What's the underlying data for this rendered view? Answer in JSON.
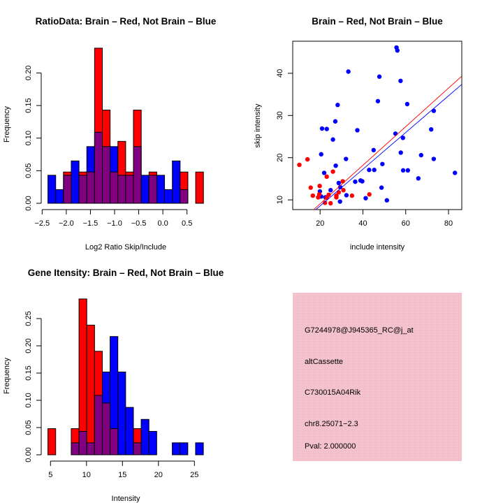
{
  "colors": {
    "red": "#ff0000",
    "blue": "#0000ff",
    "overlap": "#800080",
    "panel": "#f4c2cc",
    "pval": "#8b0000"
  },
  "chart_data": [
    {
      "type": "bar",
      "title": "RatioData: Brain – Red, Not Brain – Blue",
      "xlabel": "Log2 Ratio Skip/Include",
      "ylabel": "Frequency",
      "bin_start": -2.38,
      "bin_width": 0.161,
      "xticks": [
        -2.5,
        -2.0,
        -1.5,
        -1.0,
        -0.5,
        0.0,
        0.5
      ],
      "xtick_labels": [
        "−2.5",
        "−2.0",
        "−1.5",
        "−1.0",
        "−0.5",
        "0.0",
        "0.5"
      ],
      "yticks": [
        0,
        0.05,
        0.1,
        0.15,
        0.2
      ],
      "ytick_labels": [
        "0.00",
        "0.05",
        "0.10",
        "0.15",
        "0.20"
      ],
      "series": [
        {
          "name": "Brain",
          "color": "red",
          "values": [
            0,
            0,
            0.048,
            0,
            0.048,
            0.048,
            0.238,
            0.143,
            0.048,
            0.095,
            0.048,
            0.143,
            0,
            0.048,
            0,
            0,
            0,
            0.048,
            0,
            0.048
          ]
        },
        {
          "name": "Not Brain",
          "color": "blue",
          "values": [
            0.043,
            0.021,
            0.043,
            0.065,
            0.043,
            0.087,
            0.109,
            0.087,
            0.087,
            0.043,
            0.043,
            0.087,
            0.043,
            0.043,
            0.043,
            0.021,
            0.065,
            0.021,
            0,
            0
          ]
        }
      ]
    },
    {
      "type": "scatter",
      "title": "Brain – Red, Not Brain – Blue",
      "xlabel": "include intensity",
      "ylabel": "skip intensity",
      "xlim": [
        7.2,
        86.2
      ],
      "ylim": [
        7.7,
        47.6
      ],
      "xticks": [
        20,
        40,
        60,
        80
      ],
      "xtick_labels": [
        "20",
        "40",
        "60",
        "80"
      ],
      "yticks": [
        10,
        20,
        30,
        40
      ],
      "ytick_labels": [
        "10",
        "20",
        "30",
        "40"
      ],
      "series": [
        {
          "name": "Not Brain",
          "color": "blue",
          "points": [
            [
              55.7,
              46.1
            ],
            [
              56.1,
              45.4
            ],
            [
              33.2,
              40.4
            ],
            [
              47.7,
              39.2
            ],
            [
              57.6,
              38.2
            ],
            [
              47.0,
              33.4
            ],
            [
              60.7,
              32.7
            ],
            [
              28.2,
              32.5
            ],
            [
              73.1,
              31.1
            ],
            [
              27.1,
              28.6
            ],
            [
              20.9,
              26.9
            ],
            [
              23.1,
              26.8
            ],
            [
              71.9,
              26.7
            ],
            [
              37.4,
              26.5
            ],
            [
              55.2,
              25.7
            ],
            [
              26.0,
              24.3
            ],
            [
              58.7,
              24.7
            ],
            [
              45.0,
              21.8
            ],
            [
              57.7,
              21.2
            ],
            [
              67.2,
              20.6
            ],
            [
              20.5,
              20.8
            ],
            [
              32.1,
              19.7
            ],
            [
              73.1,
              19.7
            ],
            [
              49.1,
              18.5
            ],
            [
              27.3,
              18.1
            ],
            [
              42.9,
              17.1
            ],
            [
              45.3,
              17.1
            ],
            [
              58.8,
              17.0
            ],
            [
              61.0,
              17.0
            ],
            [
              83.0,
              16.4
            ],
            [
              21.9,
              16.4
            ],
            [
              65.9,
              15.1
            ],
            [
              36.4,
              14.3
            ],
            [
              38.9,
              14.6
            ],
            [
              39.7,
              14.4
            ],
            [
              28.7,
              14.0
            ],
            [
              48.7,
              12.9
            ],
            [
              29.4,
              13.0
            ],
            [
              24.9,
              12.3
            ],
            [
              19.9,
              12.0
            ],
            [
              20.5,
              10.8
            ],
            [
              22.5,
              10.6
            ],
            [
              32.3,
              11.1
            ],
            [
              41.3,
              10.4
            ],
            [
              29.3,
              9.6
            ],
            [
              51.2,
              9.9
            ]
          ],
          "fit": {
            "slope": 0.435,
            "intercept": -0.13
          }
        },
        {
          "name": "Brain",
          "color": "red",
          "points": [
            [
              10.3,
              18.3
            ],
            [
              14.1,
              19.6
            ],
            [
              26.0,
              16.7
            ],
            [
              23.1,
              15.5
            ],
            [
              15.6,
              12.9
            ],
            [
              19.8,
              13.3
            ],
            [
              16.6,
              11.0
            ],
            [
              19.1,
              10.6
            ],
            [
              19.6,
              11.3
            ],
            [
              30.6,
              14.4
            ],
            [
              30.9,
              12.3
            ],
            [
              28.7,
              11.8
            ],
            [
              27.6,
              11.0
            ],
            [
              27.6,
              10.6
            ],
            [
              24.0,
              11.2
            ],
            [
              34.9,
              11.0
            ],
            [
              43.0,
              11.3
            ],
            [
              22.3,
              9.3
            ],
            [
              24.9,
              9.2
            ],
            [
              23.1,
              10.5
            ]
          ],
          "fit": {
            "slope": 0.457,
            "intercept": -0.07
          }
        }
      ]
    },
    {
      "type": "bar",
      "title": "Gene Itensity: Brain – Red, Not Brain – Blue",
      "xlabel": "Intensity",
      "ylabel": "Frequency",
      "bin_start": 4.64,
      "bin_width": 1.08,
      "xticks": [
        5,
        10,
        15,
        20,
        25
      ],
      "xtick_labels": [
        "5",
        "10",
        "15",
        "20",
        "25"
      ],
      "yticks": [
        0,
        0.05,
        0.1,
        0.15,
        0.2,
        0.25
      ],
      "ytick_labels": [
        "0.00",
        "0.05",
        "0.10",
        "0.15",
        "0.20",
        "0.25"
      ],
      "series": [
        {
          "name": "Brain",
          "color": "red",
          "values": [
            0.048,
            0,
            0,
            0.048,
            0.286,
            0.238,
            0.19,
            0.095,
            0.048,
            0,
            0,
            0.048,
            0,
            0,
            0,
            0,
            0,
            0,
            0,
            0
          ]
        },
        {
          "name": "Not Brain",
          "color": "blue",
          "values": [
            0,
            0,
            0,
            0.022,
            0.043,
            0.022,
            0.109,
            0.152,
            0.217,
            0.152,
            0.087,
            0.022,
            0.065,
            0.043,
            0,
            0,
            0.022,
            0.022,
            0,
            0.022
          ]
        }
      ]
    }
  ],
  "info_panel": {
    "probe": "G7244978@J945365_RC@j_at",
    "event_type": "altCassette",
    "gene": "C730015A04Rik",
    "location": "chr8.25071−2.3",
    "pval": "Pval: 2.000000"
  }
}
